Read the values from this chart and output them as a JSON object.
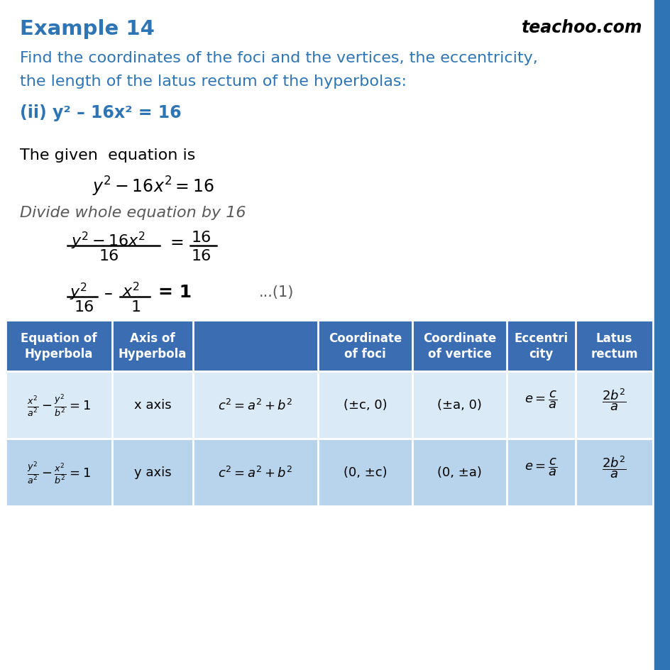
{
  "title": "Example 14",
  "brand": "teachoo.com",
  "title_color": "#2E75B6",
  "brand_color": "#000000",
  "body_color": "#000000",
  "blue_text_color": "#2E75B6",
  "gray_text_color": "#595959",
  "question_line1": "Find the coordinates of the foci and the vertices, the eccentricity,",
  "question_line2": "the length of the latus rectum of the hyperbolas:",
  "question_part": "(ii) y² – 16x² = 16",
  "given_text": "The given  equation is",
  "eq1": "y² – 16x² = 16",
  "divide_text": "Divide whole equation by 16",
  "table_header_bg": "#3B6DB3",
  "table_row1_bg": "#DAEAF7",
  "table_row2_bg": "#B8D4EC",
  "table_header_text": "#FFFFFF",
  "sidebar_color": "#2E75B6",
  "background_color": "#FFFFFF"
}
